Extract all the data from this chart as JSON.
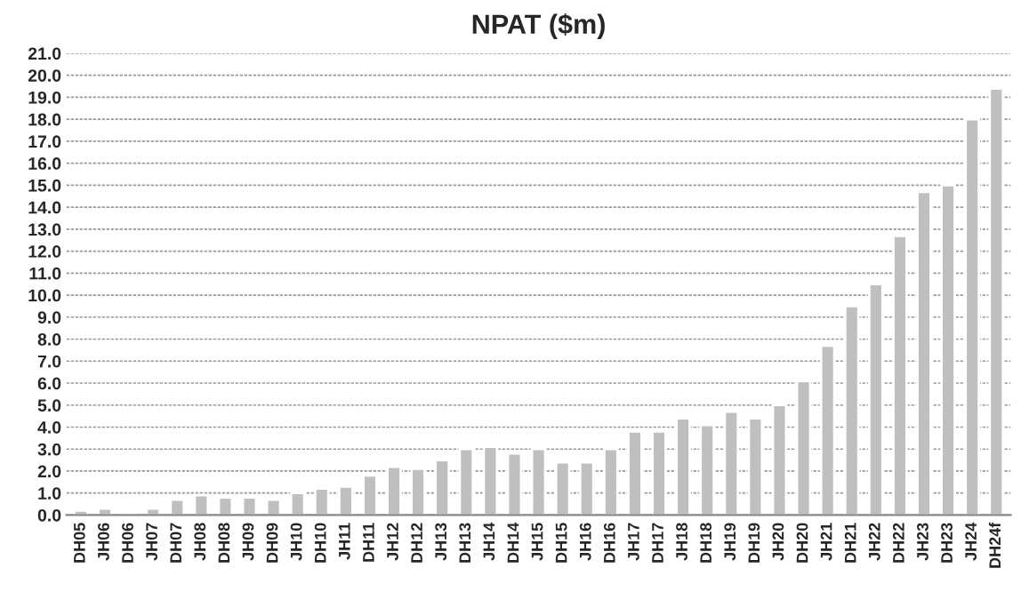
{
  "chart_data": {
    "type": "bar",
    "title": "NPAT ($m)",
    "categories": [
      "DH05",
      "JH06",
      "DH06",
      "JH07",
      "DH07",
      "JH08",
      "DH08",
      "JH09",
      "DH09",
      "JH10",
      "DH10",
      "JH11",
      "DH11",
      "JH12",
      "DH12",
      "JH13",
      "DH13",
      "JH14",
      "DH14",
      "JH15",
      "DH15",
      "JH16",
      "DH16",
      "JH17",
      "DH17",
      "JH18",
      "DH18",
      "JH19",
      "DH19",
      "JH20",
      "DH20",
      "JH21",
      "DH21",
      "JH22",
      "DH22",
      "JH23",
      "DH23",
      "JH24",
      "DH24f"
    ],
    "values": [
      0.2,
      0.3,
      0.1,
      0.3,
      0.7,
      0.9,
      0.8,
      0.8,
      0.7,
      1.0,
      1.2,
      1.3,
      1.8,
      2.2,
      2.1,
      2.5,
      3.0,
      3.1,
      2.8,
      3.0,
      2.4,
      2.4,
      3.0,
      3.8,
      3.8,
      4.4,
      4.1,
      4.7,
      4.4,
      5.0,
      6.1,
      7.7,
      9.5,
      10.5,
      12.7,
      14.7,
      15.0,
      18.0,
      19.4
    ],
    "color": "#bfbfbf",
    "ylim": [
      0,
      21
    ],
    "yticks": [
      {
        "value": 0,
        "label": "0.0"
      },
      {
        "value": 1,
        "label": "1.0"
      },
      {
        "value": 2,
        "label": "2.0"
      },
      {
        "value": 3,
        "label": "3.0"
      },
      {
        "value": 4,
        "label": "4.0"
      },
      {
        "value": 5,
        "label": "5.0"
      },
      {
        "value": 6,
        "label": "6.0"
      },
      {
        "value": 7,
        "label": "7.0"
      },
      {
        "value": 8,
        "label": "8.0"
      },
      {
        "value": 9,
        "label": "9.0"
      },
      {
        "value": 10,
        "label": "10.0"
      },
      {
        "value": 11,
        "label": "11.0"
      },
      {
        "value": 12,
        "label": "12.0"
      },
      {
        "value": 13,
        "label": "13.0"
      },
      {
        "value": 14,
        "label": "14.0"
      },
      {
        "value": 15,
        "label": "15.0"
      },
      {
        "value": 16,
        "label": "16.0"
      },
      {
        "value": 17,
        "label": "17.0"
      },
      {
        "value": 18,
        "label": "18.0"
      },
      {
        "value": 19,
        "label": "19.0"
      },
      {
        "value": 20,
        "label": "20.0"
      },
      {
        "value": 21,
        "label": "21.0"
      }
    ],
    "grid": "y"
  }
}
